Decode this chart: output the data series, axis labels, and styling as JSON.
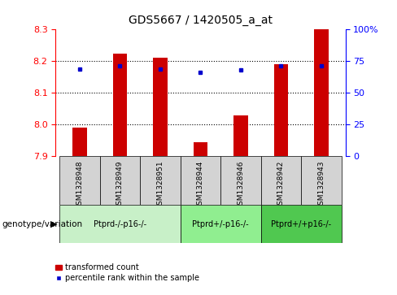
{
  "title": "GDS5667 / 1420505_a_at",
  "samples": [
    "GSM1328948",
    "GSM1328949",
    "GSM1328951",
    "GSM1328944",
    "GSM1328946",
    "GSM1328942",
    "GSM1328943"
  ],
  "red_values": [
    7.99,
    8.225,
    8.21,
    7.945,
    8.03,
    8.19,
    8.3
  ],
  "blue_values": [
    8.175,
    8.185,
    8.175,
    8.165,
    8.172,
    8.185,
    8.185
  ],
  "bar_bottom": 7.9,
  "ylim": [
    7.9,
    8.3
  ],
  "right_ylim": [
    0,
    100
  ],
  "right_yticks": [
    0,
    25,
    50,
    75,
    100
  ],
  "right_yticklabels": [
    "0",
    "25",
    "50",
    "75",
    "100%"
  ],
  "left_yticks": [
    7.9,
    8.0,
    8.1,
    8.2,
    8.3
  ],
  "dotted_lines": [
    8.0,
    8.1,
    8.2
  ],
  "groups": [
    {
      "label": "Ptprd-/-p16-/-",
      "samples": [
        "GSM1328948",
        "GSM1328949",
        "GSM1328951"
      ],
      "color": "#c8f0c8"
    },
    {
      "label": "Ptprd+/-p16-/-",
      "samples": [
        "GSM1328944",
        "GSM1328946"
      ],
      "color": "#90ee90"
    },
    {
      "label": "Ptprd+/+p16-/-",
      "samples": [
        "GSM1328942",
        "GSM1328943"
      ],
      "color": "#50c850"
    }
  ],
  "bar_color": "#cc0000",
  "dot_color": "#0000cc",
  "bg_color": "#d3d3d3",
  "legend_red_label": "transformed count",
  "legend_blue_label": "percentile rank within the sample",
  "genotype_label": "genotype/variation",
  "bar_width": 0.35
}
